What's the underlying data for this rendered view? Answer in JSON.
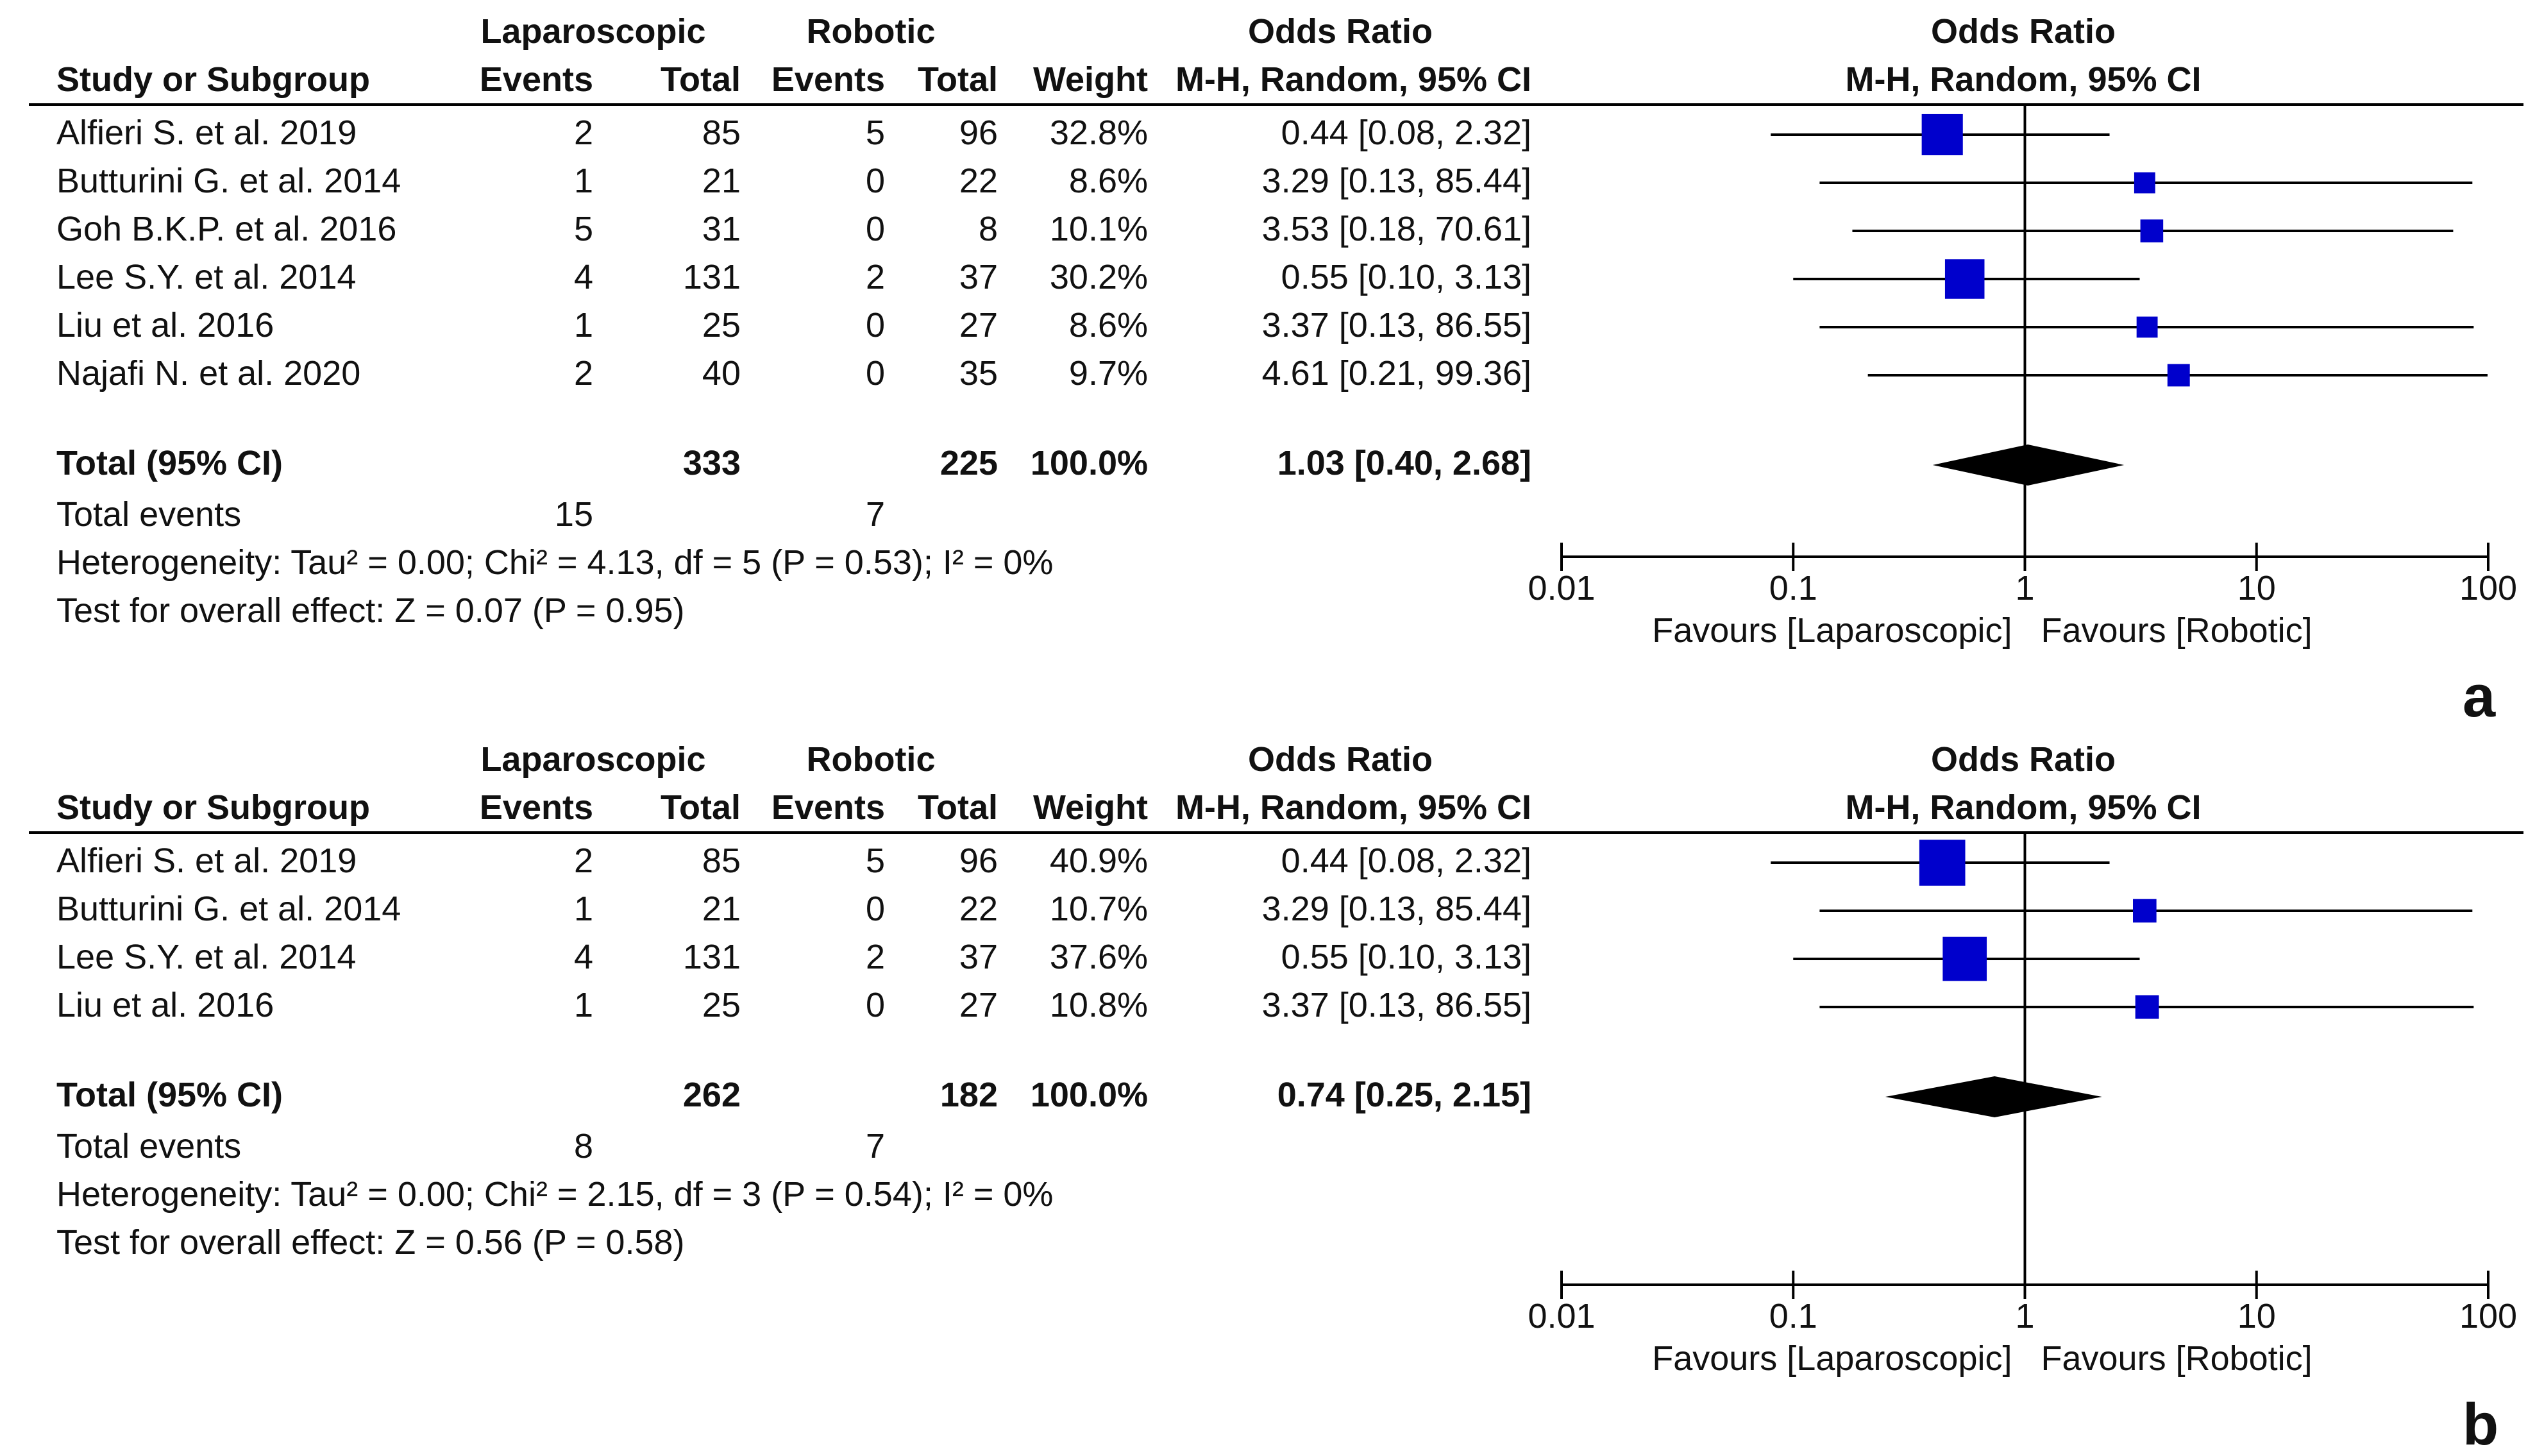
{
  "headers": {
    "lap_group": "Laparoscopic",
    "rob_group": "Robotic",
    "or_group": "Odds Ratio",
    "study": "Study or Subgroup",
    "events": "Events",
    "total": "Total",
    "weight": "Weight",
    "method": "M-H, Random, 95% CI",
    "plot_title": "Odds Ratio",
    "plot_method": "M-H, Random, 95% CI"
  },
  "chart_data": [
    {
      "type": "forest",
      "panel_label": "a",
      "x_scale": "log",
      "xlim": [
        0.01,
        100
      ],
      "ticks": [
        "0.01",
        "0.1",
        "1",
        "10",
        "100"
      ],
      "favours_left": "Favours [Laparoscopic]",
      "favours_right": "Favours [Robotic]",
      "studies": [
        {
          "name": "Alfieri S. et al. 2019",
          "lap_events": "2",
          "lap_total": "85",
          "rob_events": "5",
          "rob_total": "96",
          "weight": "32.8%",
          "ci_text": "0.44 [0.08, 2.32]",
          "or": 0.44,
          "lo": 0.08,
          "hi": 2.32
        },
        {
          "name": "Butturini G. et al. 2014",
          "lap_events": "1",
          "lap_total": "21",
          "rob_events": "0",
          "rob_total": "22",
          "weight": "8.6%",
          "ci_text": "3.29 [0.13, 85.44]",
          "or": 3.29,
          "lo": 0.13,
          "hi": 85.44
        },
        {
          "name": "Goh B.K.P. et al. 2016",
          "lap_events": "5",
          "lap_total": "31",
          "rob_events": "0",
          "rob_total": "8",
          "weight": "10.1%",
          "ci_text": "3.53 [0.18, 70.61]",
          "or": 3.53,
          "lo": 0.18,
          "hi": 70.61
        },
        {
          "name": "Lee S.Y. et al. 2014",
          "lap_events": "4",
          "lap_total": "131",
          "rob_events": "2",
          "rob_total": "37",
          "weight": "30.2%",
          "ci_text": "0.55 [0.10, 3.13]",
          "or": 0.55,
          "lo": 0.1,
          "hi": 3.13
        },
        {
          "name": "Liu et al. 2016",
          "lap_events": "1",
          "lap_total": "25",
          "rob_events": "0",
          "rob_total": "27",
          "weight": "8.6%",
          "ci_text": "3.37 [0.13, 86.55]",
          "or": 3.37,
          "lo": 0.13,
          "hi": 86.55
        },
        {
          "name": "Najafi N. et al. 2020",
          "lap_events": "2",
          "lap_total": "40",
          "rob_events": "0",
          "rob_total": "35",
          "weight": "9.7%",
          "ci_text": "4.61 [0.21, 99.36]",
          "or": 4.61,
          "lo": 0.21,
          "hi": 99.36
        }
      ],
      "total": {
        "label": "Total (95% CI)",
        "lap_total": "333",
        "rob_total": "225",
        "weight": "100.0%",
        "ci_text": "1.03 [0.40, 2.68]",
        "or": 1.03,
        "lo": 0.4,
        "hi": 2.68
      },
      "total_events": {
        "label": "Total events",
        "lap": "15",
        "rob": "7"
      },
      "heterogeneity": "Heterogeneity: Tau² = 0.00; Chi² = 4.13, df = 5 (P = 0.53); I² = 0%",
      "overall_effect": "Test for overall effect: Z = 0.07 (P = 0.95)"
    },
    {
      "type": "forest",
      "panel_label": "b",
      "x_scale": "log",
      "xlim": [
        0.01,
        100
      ],
      "ticks": [
        "0.01",
        "0.1",
        "1",
        "10",
        "100"
      ],
      "favours_left": "Favours [Laparoscopic]",
      "favours_right": "Favours [Robotic]",
      "studies": [
        {
          "name": "Alfieri S. et al. 2019",
          "lap_events": "2",
          "lap_total": "85",
          "rob_events": "5",
          "rob_total": "96",
          "weight": "40.9%",
          "ci_text": "0.44 [0.08, 2.32]",
          "or": 0.44,
          "lo": 0.08,
          "hi": 2.32
        },
        {
          "name": "Butturini G. et al. 2014",
          "lap_events": "1",
          "lap_total": "21",
          "rob_events": "0",
          "rob_total": "22",
          "weight": "10.7%",
          "ci_text": "3.29 [0.13, 85.44]",
          "or": 3.29,
          "lo": 0.13,
          "hi": 85.44
        },
        {
          "name": "Lee S.Y. et al. 2014",
          "lap_events": "4",
          "lap_total": "131",
          "rob_events": "2",
          "rob_total": "37",
          "weight": "37.6%",
          "ci_text": "0.55 [0.10, 3.13]",
          "or": 0.55,
          "lo": 0.1,
          "hi": 3.13
        },
        {
          "name": "Liu et al. 2016",
          "lap_events": "1",
          "lap_total": "25",
          "rob_events": "0",
          "rob_total": "27",
          "weight": "10.8%",
          "ci_text": "3.37 [0.13, 86.55]",
          "or": 3.37,
          "lo": 0.13,
          "hi": 86.55
        }
      ],
      "total": {
        "label": "Total (95% CI)",
        "lap_total": "262",
        "rob_total": "182",
        "weight": "100.0%",
        "ci_text": "0.74 [0.25, 2.15]",
        "or": 0.74,
        "lo": 0.25,
        "hi": 2.15
      },
      "total_events": {
        "label": "Total events",
        "lap": "8",
        "rob": "7"
      },
      "heterogeneity": "Heterogeneity: Tau² = 0.00; Chi² = 2.15, df = 3 (P = 0.54); I² = 0%",
      "overall_effect": "Test for overall effect: Z = 0.56 (P = 0.58)"
    }
  ],
  "colors": {
    "marker": "#0000cc",
    "diamond": "#000000",
    "line": "#000000"
  }
}
